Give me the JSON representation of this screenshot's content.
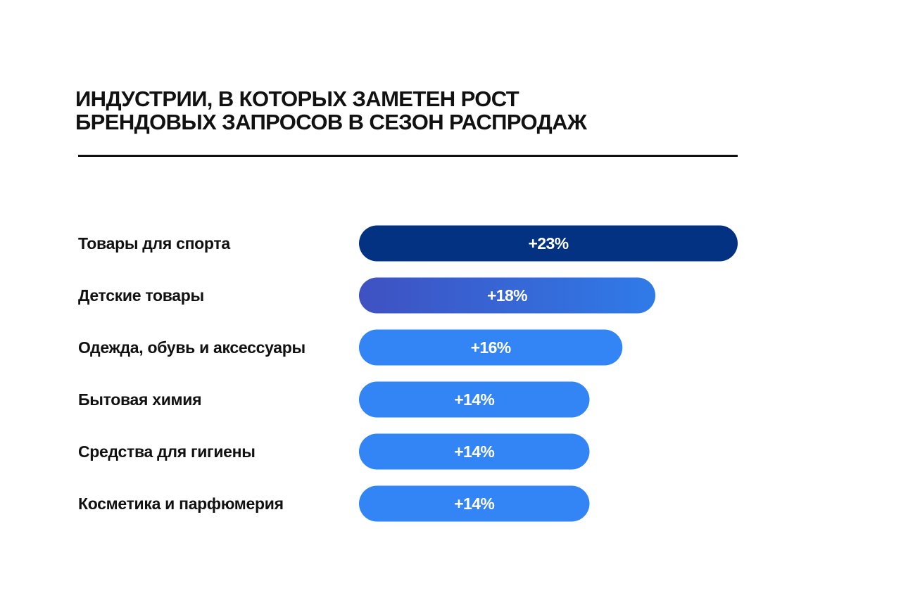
{
  "title_lines": [
    "ИНДУСТРИИ, В КОТОРЫХ ЗАМЕТЕН РОСТ",
    "БРЕНДОВЫХ ЗАПРОСОВ В СЕЗОН РАСПРОДАЖ"
  ],
  "chart_data": {
    "type": "bar",
    "orientation": "horizontal",
    "title": "ИНДУСТРИИ, В КОТОРЫХ ЗАМЕТЕН РОСТ БРЕНДОВЫХ ЗАПРОСОВ В СЕЗОН РАСПРОДАЖ",
    "categories": [
      "Товары для спорта",
      "Детские товары",
      "Одежда, обувь и аксессуары",
      "Бытовая химия",
      "Средства для гигиены",
      "Косметика и парфюмерия"
    ],
    "values": [
      23,
      18,
      16,
      14,
      14,
      14
    ],
    "value_labels": [
      "+23%",
      "+18%",
      "+16%",
      "+14%",
      "+14%",
      "+14%"
    ],
    "unit": "%",
    "grid": false,
    "legend": "none",
    "colors": {
      "first_bar": "#033282",
      "second_bar_gradient": [
        "#3F51C2",
        "#2F7BE8"
      ],
      "other_bars": "#3384F5",
      "label_text": "#111111",
      "value_text": "#ffffff"
    }
  }
}
